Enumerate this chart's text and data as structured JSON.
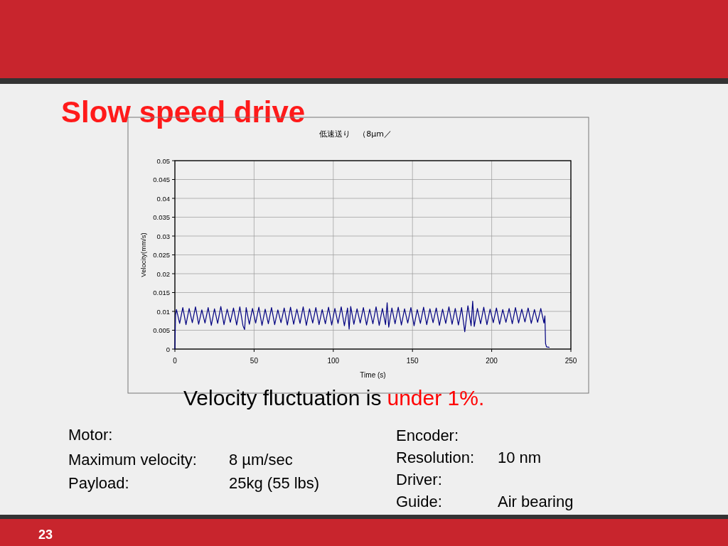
{
  "chart_data": {
    "type": "line",
    "title": "Slow speed drive",
    "subtitle": "低速送り　（8μm／",
    "xlabel": "Time (s)",
    "ylabel": "Velocity(mm/s)",
    "xlim": [
      0,
      250
    ],
    "xticks": [
      0,
      50,
      100,
      150,
      200,
      250
    ],
    "ylim": [
      0,
      0.05
    ],
    "yticks": [
      0,
      0.005,
      0.01,
      0.015,
      0.02,
      0.025,
      0.03,
      0.035,
      0.04,
      0.045,
      0.05
    ],
    "grid": true,
    "marker": "none",
    "line_style": "solid",
    "series": [
      {
        "color": "#000080",
        "x": [
          0,
          0.4,
          1,
          3,
          5,
          7,
          9,
          11,
          13,
          15,
          17,
          19,
          21,
          23,
          25,
          27,
          29,
          31,
          33,
          35,
          37,
          39,
          41,
          43,
          44,
          45,
          47,
          49,
          51,
          53,
          55,
          57,
          59,
          61,
          63,
          65,
          67,
          69,
          71,
          73,
          75,
          77,
          79,
          81,
          83,
          85,
          87,
          89,
          91,
          93,
          95,
          97,
          99,
          101,
          103,
          105,
          107,
          109,
          110,
          111,
          113,
          115,
          117,
          119,
          121,
          123,
          125,
          127,
          129,
          131,
          133,
          134,
          135,
          137,
          139,
          141,
          143,
          145,
          147,
          149,
          151,
          153,
          155,
          157,
          159,
          161,
          163,
          165,
          167,
          169,
          171,
          173,
          175,
          177,
          179,
          181,
          183,
          185,
          187,
          188,
          189,
          191,
          193,
          195,
          197,
          199,
          201,
          203,
          205,
          207,
          209,
          211,
          213,
          215,
          217,
          219,
          221,
          223,
          225,
          227,
          229,
          231,
          233,
          233.6,
          234,
          234.6,
          236,
          236.4
        ],
        "values": [
          0,
          0.009,
          0.0105,
          0.0068,
          0.011,
          0.0065,
          0.0108,
          0.007,
          0.0112,
          0.0066,
          0.0104,
          0.0069,
          0.011,
          0.0063,
          0.0107,
          0.0068,
          0.0113,
          0.0065,
          0.0106,
          0.0071,
          0.0109,
          0.0064,
          0.0112,
          0.0062,
          0.0052,
          0.011,
          0.0066,
          0.0108,
          0.0069,
          0.0111,
          0.0063,
          0.0106,
          0.0067,
          0.011,
          0.0065,
          0.0104,
          0.007,
          0.0109,
          0.0064,
          0.0111,
          0.0066,
          0.0106,
          0.0068,
          0.0112,
          0.0063,
          0.0107,
          0.0069,
          0.011,
          0.0065,
          0.0105,
          0.0067,
          0.0111,
          0.0064,
          0.0108,
          0.0068,
          0.0112,
          0.0062,
          0.0109,
          0.0053,
          0.0113,
          0.0066,
          0.0107,
          0.0069,
          0.011,
          0.0064,
          0.0106,
          0.0067,
          0.0112,
          0.0063,
          0.0108,
          0.0065,
          0.0123,
          0.0058,
          0.0109,
          0.0067,
          0.0111,
          0.0064,
          0.0107,
          0.0069,
          0.011,
          0.0062,
          0.0105,
          0.0068,
          0.0111,
          0.0065,
          0.0107,
          0.007,
          0.0109,
          0.0063,
          0.0106,
          0.0068,
          0.0112,
          0.0066,
          0.0108,
          0.0064,
          0.011,
          0.0046,
          0.0115,
          0.0062,
          0.0127,
          0.006,
          0.0108,
          0.0067,
          0.0111,
          0.0065,
          0.0106,
          0.007,
          0.0109,
          0.0066,
          0.0105,
          0.0071,
          0.0108,
          0.0067,
          0.011,
          0.0069,
          0.0106,
          0.0072,
          0.0109,
          0.0068,
          0.0105,
          0.0071,
          0.0108,
          0.0069,
          0.0088,
          0.0015,
          0.0006,
          0.0005,
          0.0004
        ]
      }
    ],
    "annotations": [
      "Velocity fluctuation is",
      "under 1%.",
      "Motor:",
      "Maximum velocity:",
      "8 µm/sec",
      "Payload:",
      "25kg (55 lbs)",
      "Encoder:",
      "Resolution:",
      "10 nm",
      "Driver:",
      "Guide:",
      "Air bearing",
      "23"
    ]
  }
}
